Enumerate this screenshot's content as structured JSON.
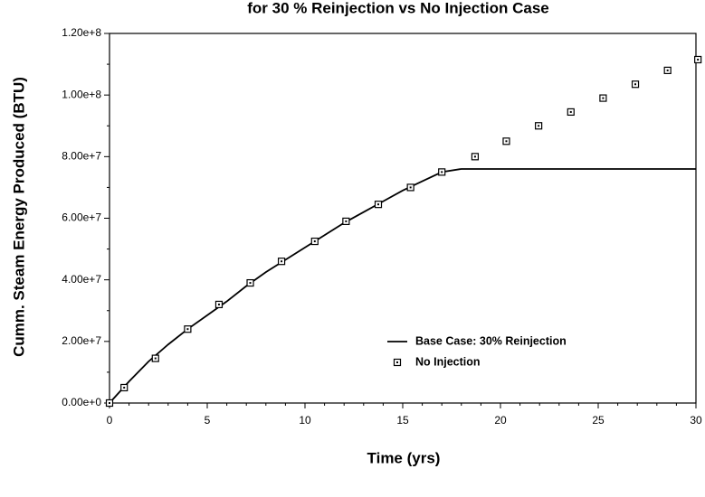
{
  "chart_data": {
    "type": "line_scatter",
    "title": "for 30 % Reinjection vs No Injection Case",
    "x_label": "Time  (yrs)",
    "y_label": "Cumm.  Steam  Energy  Produced  (BTU)",
    "xlim": [
      0,
      30
    ],
    "xticks": [
      0,
      5,
      10,
      15,
      20,
      25,
      30
    ],
    "ylim": [
      0,
      120000000
    ],
    "yticks": [
      {
        "value": 0,
        "label": "0.00e+0"
      },
      {
        "value": 20000000,
        "label": "2.00e+7"
      },
      {
        "value": 40000000,
        "label": "4.00e+7"
      },
      {
        "value": 60000000,
        "label": "6.00e+7"
      },
      {
        "value": 80000000,
        "label": "8.00e+7"
      },
      {
        "value": 100000000,
        "label": "1.00e+8"
      },
      {
        "value": 120000000,
        "label": "1.20e+8"
      }
    ],
    "series": [
      {
        "name": "Base Case: 30% Reinjection",
        "color": "#000000",
        "style": "line",
        "x": [
          0,
          1,
          2,
          3,
          4,
          5,
          6,
          7,
          8,
          9,
          10,
          11,
          12,
          13,
          14,
          15,
          16,
          17,
          18,
          19,
          20,
          22,
          24,
          26,
          28,
          30
        ],
        "values": [
          0,
          7000000,
          13500000,
          19000000,
          24000000,
          28500000,
          33000000,
          38000000,
          42500000,
          46500000,
          50500000,
          54500000,
          58500000,
          62000000,
          65500000,
          69000000,
          72000000,
          75000000,
          76000000,
          76000000,
          76000000,
          76000000,
          76000000,
          76000000,
          76000000,
          76000000
        ]
      },
      {
        "name": "No Injection",
        "color": "#000000",
        "style": "marker",
        "x": [
          0,
          0.75,
          2.35,
          4.0,
          5.6,
          7.2,
          8.8,
          10.5,
          12.1,
          13.75,
          15.4,
          17.0,
          18.7,
          20.3,
          21.95,
          23.6,
          25.25,
          26.9,
          28.55,
          30.1
        ],
        "values": [
          0,
          5000000,
          14500000,
          24000000,
          32000000,
          39000000,
          46000000,
          52500000,
          59000000,
          64500000,
          70000000,
          75000000,
          80000000,
          85000000,
          90000000,
          94500000,
          99000000,
          103500000,
          108000000,
          111500000
        ]
      }
    ],
    "legend": "lower-right"
  }
}
